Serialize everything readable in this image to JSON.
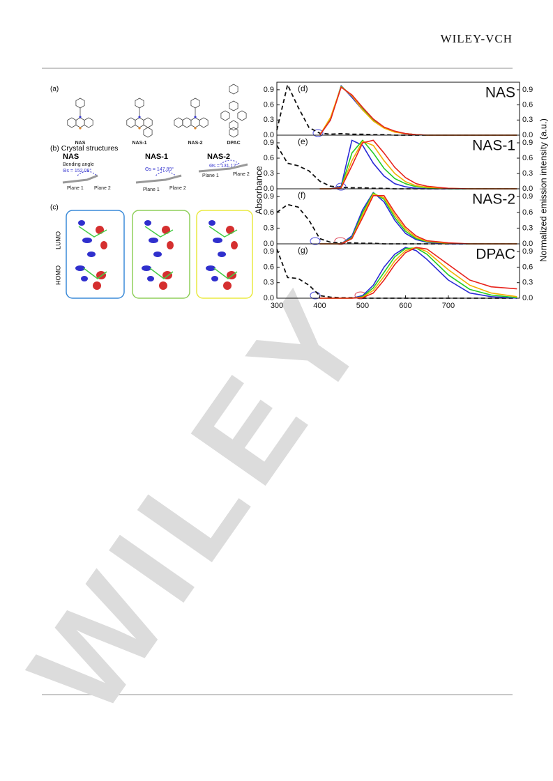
{
  "header": {
    "publisher": "WILEY-VCH"
  },
  "watermark": "WILEY",
  "figure": {
    "panel_a": "(a)",
    "molecules": [
      "NAS",
      "NAS-1",
      "NAS-2",
      "DPAC"
    ],
    "panel_b": "(b) Crystal structures",
    "crystals": [
      {
        "name": "NAS",
        "note": "Bending angle",
        "angle": "Θs = 152.08°"
      },
      {
        "name": "NAS-1",
        "angle": "Θs = 147.89°"
      },
      {
        "name": "NAS-2",
        "angle": "Θs = 131.12°"
      }
    ],
    "plane_labels": [
      "Plane 1",
      "Plane 2"
    ],
    "panel_c": "(c)",
    "orbitals": [
      "LUMO",
      "HOMO"
    ]
  },
  "chart_data": [
    {
      "type": "line",
      "panel": "(d)",
      "title": "NAS",
      "ylabel": "Absorbance",
      "y2label": "Normalized emission intensity (a.u.)",
      "x": [
        300,
        325,
        350,
        375,
        400,
        425,
        450,
        475,
        500,
        525,
        550,
        575,
        600,
        625,
        650,
        700,
        750,
        800,
        860
      ],
      "xlim": [
        300,
        866
      ],
      "ylim": [
        0,
        1.05
      ],
      "y2lim": [
        0,
        1.05
      ],
      "yticks": [
        {
          "value": 0,
          "label": "0.0"
        },
        0.3,
        0.6,
        0.9
      ],
      "y2ticks": [
        {
          "value": 0,
          "label": "0.0"
        },
        0.3,
        0.6,
        0.9
      ],
      "series": [
        {
          "color": "#111111",
          "dash": true,
          "values": [
            0.1,
            1.0,
            0.55,
            0.15,
            0.04,
            0.02,
            0.03,
            0.02,
            0.02,
            0.01,
            0.01,
            0,
            0,
            0,
            0,
            0,
            0,
            0,
            0
          ]
        },
        {
          "color": "#2a2ad6",
          "axis": "y2",
          "values": [
            null,
            null,
            null,
            null,
            0,
            0.3,
            0.98,
            0.75,
            0.5,
            0.3,
            0.15,
            0.07,
            0.03,
            0.01,
            0,
            0,
            0,
            0,
            0
          ]
        },
        {
          "color": "#22cc22",
          "axis": "y2",
          "values": [
            null,
            null,
            null,
            null,
            0,
            0.32,
            0.97,
            0.78,
            0.52,
            0.3,
            0.15,
            0.07,
            0.03,
            0.01,
            0,
            0,
            0,
            0,
            0
          ]
        },
        {
          "color": "#f2b000",
          "axis": "y2",
          "values": [
            null,
            null,
            null,
            null,
            0,
            0.35,
            0.96,
            0.78,
            0.5,
            0.28,
            0.14,
            0.06,
            0.03,
            0.01,
            0,
            0,
            0,
            0,
            0
          ]
        },
        {
          "color": "#e8231c",
          "axis": "y2",
          "values": [
            null,
            null,
            null,
            null,
            0,
            0.3,
            0.95,
            0.8,
            0.55,
            0.32,
            0.16,
            0.08,
            0.03,
            0.01,
            0,
            0,
            0,
            0,
            0
          ]
        }
      ]
    },
    {
      "type": "line",
      "panel": "(e)",
      "title": "NAS-1",
      "x": [
        300,
        325,
        350,
        375,
        400,
        425,
        450,
        475,
        500,
        525,
        550,
        575,
        600,
        625,
        650,
        700,
        750,
        800,
        860
      ],
      "xlim": [
        300,
        866
      ],
      "ylim": [
        0,
        1.05
      ],
      "y2lim": [
        0,
        1.05
      ],
      "yticks": [
        {
          "value": 0,
          "label": "0.0"
        },
        0.3,
        0.6,
        0.9
      ],
      "y2ticks": [
        {
          "value": 0,
          "label": "0.0"
        },
        0.3,
        0.6,
        0.9
      ],
      "series": [
        {
          "color": "#111111",
          "dash": true,
          "values": [
            0.85,
            0.5,
            0.45,
            0.35,
            0.15,
            0.05,
            0.03,
            0.02,
            0.02,
            0.01,
            0.01,
            0,
            0,
            0,
            0,
            0,
            0,
            0,
            0
          ]
        },
        {
          "color": "#2a2ad6",
          "axis": "y2",
          "values": [
            null,
            null,
            null,
            null,
            0,
            0,
            0.05,
            0.95,
            0.85,
            0.5,
            0.25,
            0.1,
            0.04,
            0.01,
            0,
            0,
            0,
            0,
            0
          ]
        },
        {
          "color": "#22cc22",
          "axis": "y2",
          "values": [
            null,
            null,
            null,
            null,
            0,
            0,
            0.03,
            0.7,
            0.95,
            0.7,
            0.4,
            0.2,
            0.1,
            0.04,
            0.02,
            0,
            0,
            0,
            0
          ]
        },
        {
          "color": "#f2b000",
          "axis": "y2",
          "values": [
            null,
            null,
            null,
            null,
            0,
            0,
            0.02,
            0.55,
            0.93,
            0.85,
            0.55,
            0.3,
            0.14,
            0.06,
            0.03,
            0.01,
            0,
            0,
            0
          ]
        },
        {
          "color": "#e8231c",
          "axis": "y2",
          "values": [
            null,
            null,
            null,
            null,
            0,
            0,
            0.02,
            0.45,
            0.9,
            0.95,
            0.7,
            0.42,
            0.22,
            0.1,
            0.05,
            0.01,
            0,
            0,
            0
          ]
        }
      ]
    },
    {
      "type": "line",
      "panel": "(f)",
      "title": "NAS-2",
      "x": [
        300,
        325,
        350,
        375,
        400,
        425,
        450,
        475,
        500,
        525,
        550,
        575,
        600,
        625,
        650,
        700,
        750,
        800,
        860
      ],
      "xlim": [
        300,
        866
      ],
      "ylim": [
        0,
        1.05
      ],
      "y2lim": [
        0,
        1.05
      ],
      "yticks": [
        {
          "value": 0,
          "label": "0.0"
        },
        0.3,
        0.6,
        0.9
      ],
      "y2ticks": [
        {
          "value": 0,
          "label": "0.0"
        },
        0.3,
        0.6,
        0.9
      ],
      "series": [
        {
          "color": "#111111",
          "dash": true,
          "values": [
            0.6,
            0.75,
            0.7,
            0.45,
            0.1,
            0.03,
            0.02,
            0.02,
            0.01,
            0.01,
            0,
            0,
            0,
            0,
            0,
            0,
            0,
            0,
            0
          ]
        },
        {
          "color": "#2a2ad6",
          "axis": "y2",
          "values": [
            null,
            null,
            null,
            null,
            0,
            0,
            0,
            0.15,
            0.65,
            0.98,
            0.8,
            0.45,
            0.2,
            0.08,
            0.03,
            0,
            0,
            0,
            0
          ]
        },
        {
          "color": "#22cc22",
          "axis": "y2",
          "values": [
            null,
            null,
            null,
            null,
            0,
            0,
            0,
            0.12,
            0.6,
            0.97,
            0.85,
            0.5,
            0.24,
            0.1,
            0.04,
            0.01,
            0,
            0,
            0
          ]
        },
        {
          "color": "#f2b000",
          "axis": "y2",
          "values": [
            null,
            null,
            null,
            null,
            0,
            0,
            0,
            0.1,
            0.55,
            0.95,
            0.88,
            0.55,
            0.28,
            0.12,
            0.05,
            0.01,
            0,
            0,
            0
          ]
        },
        {
          "color": "#e8231c",
          "axis": "y2",
          "values": [
            null,
            null,
            null,
            null,
            0,
            0,
            0,
            0.1,
            0.5,
            0.92,
            0.92,
            0.6,
            0.32,
            0.15,
            0.06,
            0.02,
            0,
            0,
            0
          ]
        }
      ]
    },
    {
      "type": "line",
      "panel": "(g)",
      "title": "DPAC",
      "x": [
        300,
        325,
        350,
        375,
        400,
        425,
        450,
        475,
        500,
        525,
        550,
        575,
        600,
        625,
        650,
        700,
        750,
        800,
        860
      ],
      "xlim": [
        300,
        866
      ],
      "ylim": [
        0,
        1.05
      ],
      "y2lim": [
        0,
        1.05
      ],
      "xticks": [
        300,
        400,
        500,
        600,
        700
      ],
      "yticks": [
        {
          "value": 0,
          "label": "0.0"
        },
        0.3,
        0.6,
        0.9
      ],
      "y2ticks": [
        {
          "value": 0,
          "label": "0.0"
        },
        0.3,
        0.6,
        0.9
      ],
      "series": [
        {
          "color": "#111111",
          "dash": true,
          "values": [
            0.95,
            0.4,
            0.38,
            0.25,
            0.05,
            0.02,
            0.01,
            0.01,
            0,
            0,
            0,
            0,
            0,
            0,
            0,
            0,
            0,
            0,
            0
          ]
        },
        {
          "color": "#2a2ad6",
          "axis": "y2",
          "values": [
            null,
            null,
            null,
            null,
            0,
            0,
            0,
            0,
            0.05,
            0.25,
            0.6,
            0.85,
            0.98,
            0.92,
            0.75,
            0.35,
            0.1,
            0.03,
            0
          ]
        },
        {
          "color": "#22cc22",
          "axis": "y2",
          "values": [
            null,
            null,
            null,
            null,
            0,
            0,
            0,
            0,
            0.03,
            0.2,
            0.5,
            0.8,
            0.96,
            0.97,
            0.85,
            0.45,
            0.17,
            0.06,
            0.01
          ]
        },
        {
          "color": "#f2b000",
          "axis": "y2",
          "values": [
            null,
            null,
            null,
            null,
            0,
            0,
            0,
            0,
            0.02,
            0.15,
            0.42,
            0.72,
            0.92,
            0.98,
            0.9,
            0.55,
            0.25,
            0.1,
            0.03
          ]
        },
        {
          "color": "#e8231c",
          "axis": "y2",
          "values": [
            null,
            null,
            null,
            null,
            0,
            0,
            0,
            0,
            0.01,
            0.1,
            0.35,
            0.65,
            0.88,
            0.98,
            0.95,
            0.65,
            0.35,
            0.22,
            0.18
          ]
        }
      ]
    }
  ]
}
